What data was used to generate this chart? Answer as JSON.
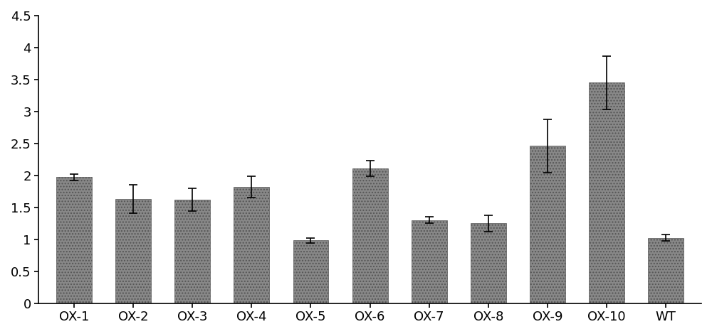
{
  "categories": [
    "OX-1",
    "OX-2",
    "OX-3",
    "OX-4",
    "OX-5",
    "OX-6",
    "OX-7",
    "OX-8",
    "OX-9",
    "OX-10",
    "WT"
  ],
  "values": [
    1.97,
    1.63,
    1.62,
    1.82,
    0.98,
    2.11,
    1.3,
    1.25,
    2.46,
    3.45,
    1.02
  ],
  "errors": [
    0.05,
    0.22,
    0.18,
    0.17,
    0.04,
    0.12,
    0.05,
    0.13,
    0.42,
    0.42,
    0.05
  ],
  "bar_color": "#888888",
  "bar_hatch": "....",
  "ylim": [
    0,
    4.5
  ],
  "yticks": [
    0,
    0.5,
    1.0,
    1.5,
    2.0,
    2.5,
    3.0,
    3.5,
    4.0,
    4.5
  ],
  "background_color": "#ffffff",
  "bar_width": 0.6,
  "ylabel_fontsize": 15,
  "tick_fontsize": 13
}
